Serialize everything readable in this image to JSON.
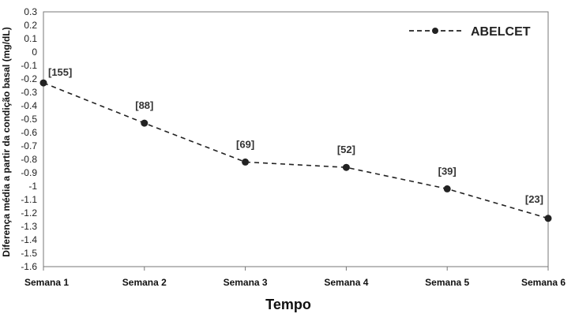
{
  "chart_data": {
    "type": "line",
    "title": "",
    "xlabel": "Tempo",
    "ylabel": "Diferença média a partir da condição basal (mg/dL)",
    "categories": [
      "Semana 1",
      "Semana 2",
      "Semana 3",
      "Semana 4",
      "Semana 5",
      "Semana 6"
    ],
    "ylim": [
      -1.6,
      0.3
    ],
    "yticks": [
      "0.3",
      "0.2",
      "0.1",
      "0",
      "-0.1",
      "-0.2",
      "-0.3",
      "-0.4",
      "-0.5",
      "-0.6",
      "-0.7",
      "-0.8",
      "-0.9",
      "-1",
      "-1.1",
      "-1.2",
      "-1.3",
      "-1.4",
      "-1.5",
      "-1.6"
    ],
    "grid": false,
    "legend_position": "top-right",
    "series": [
      {
        "name": "ABELCET",
        "values": [
          -0.23,
          -0.53,
          -0.82,
          -0.86,
          -1.02,
          -1.24
        ],
        "labels": [
          "[155]",
          "[88]",
          "[69]",
          "[52]",
          "[39]",
          "[23]"
        ],
        "color": "#222222",
        "style": "dashed"
      }
    ]
  }
}
